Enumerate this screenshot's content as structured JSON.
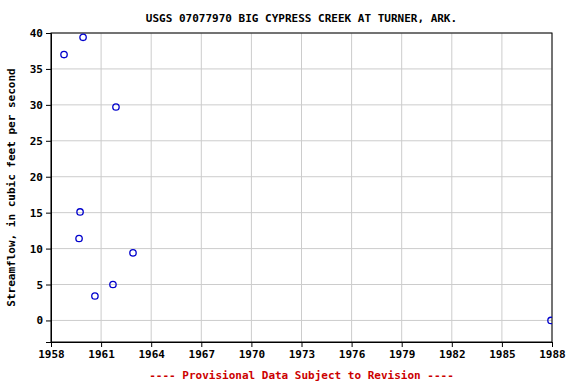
{
  "chart_data": {
    "type": "scatter",
    "title": "USGS 07077970 BIG CYPRESS CREEK AT TURNER, ARK.",
    "subtitle": "---- Provisional Data Subject to Revision ----",
    "y_label": "Streamflow, in cubic feet per second",
    "x": [
      1958.78,
      1959.92,
      1961.89,
      1959.74,
      1959.68,
      1962.91,
      1961.71,
      1960.63,
      1987.94
    ],
    "values": [
      37.0,
      39.4,
      29.7,
      15.1,
      11.4,
      9.4,
      5.0,
      3.4,
      0.0
    ],
    "color": "#0000cc",
    "marker": "circle",
    "xlim": [
      1958,
      1988
    ],
    "xticks": [
      1958,
      1961,
      1964,
      1967,
      1970,
      1973,
      1976,
      1979,
      1982,
      1985,
      1988
    ],
    "ylim": [
      -3,
      40
    ],
    "yticks": [
      0,
      5,
      10,
      15,
      20,
      25,
      30,
      35,
      40
    ],
    "grid": true
  }
}
